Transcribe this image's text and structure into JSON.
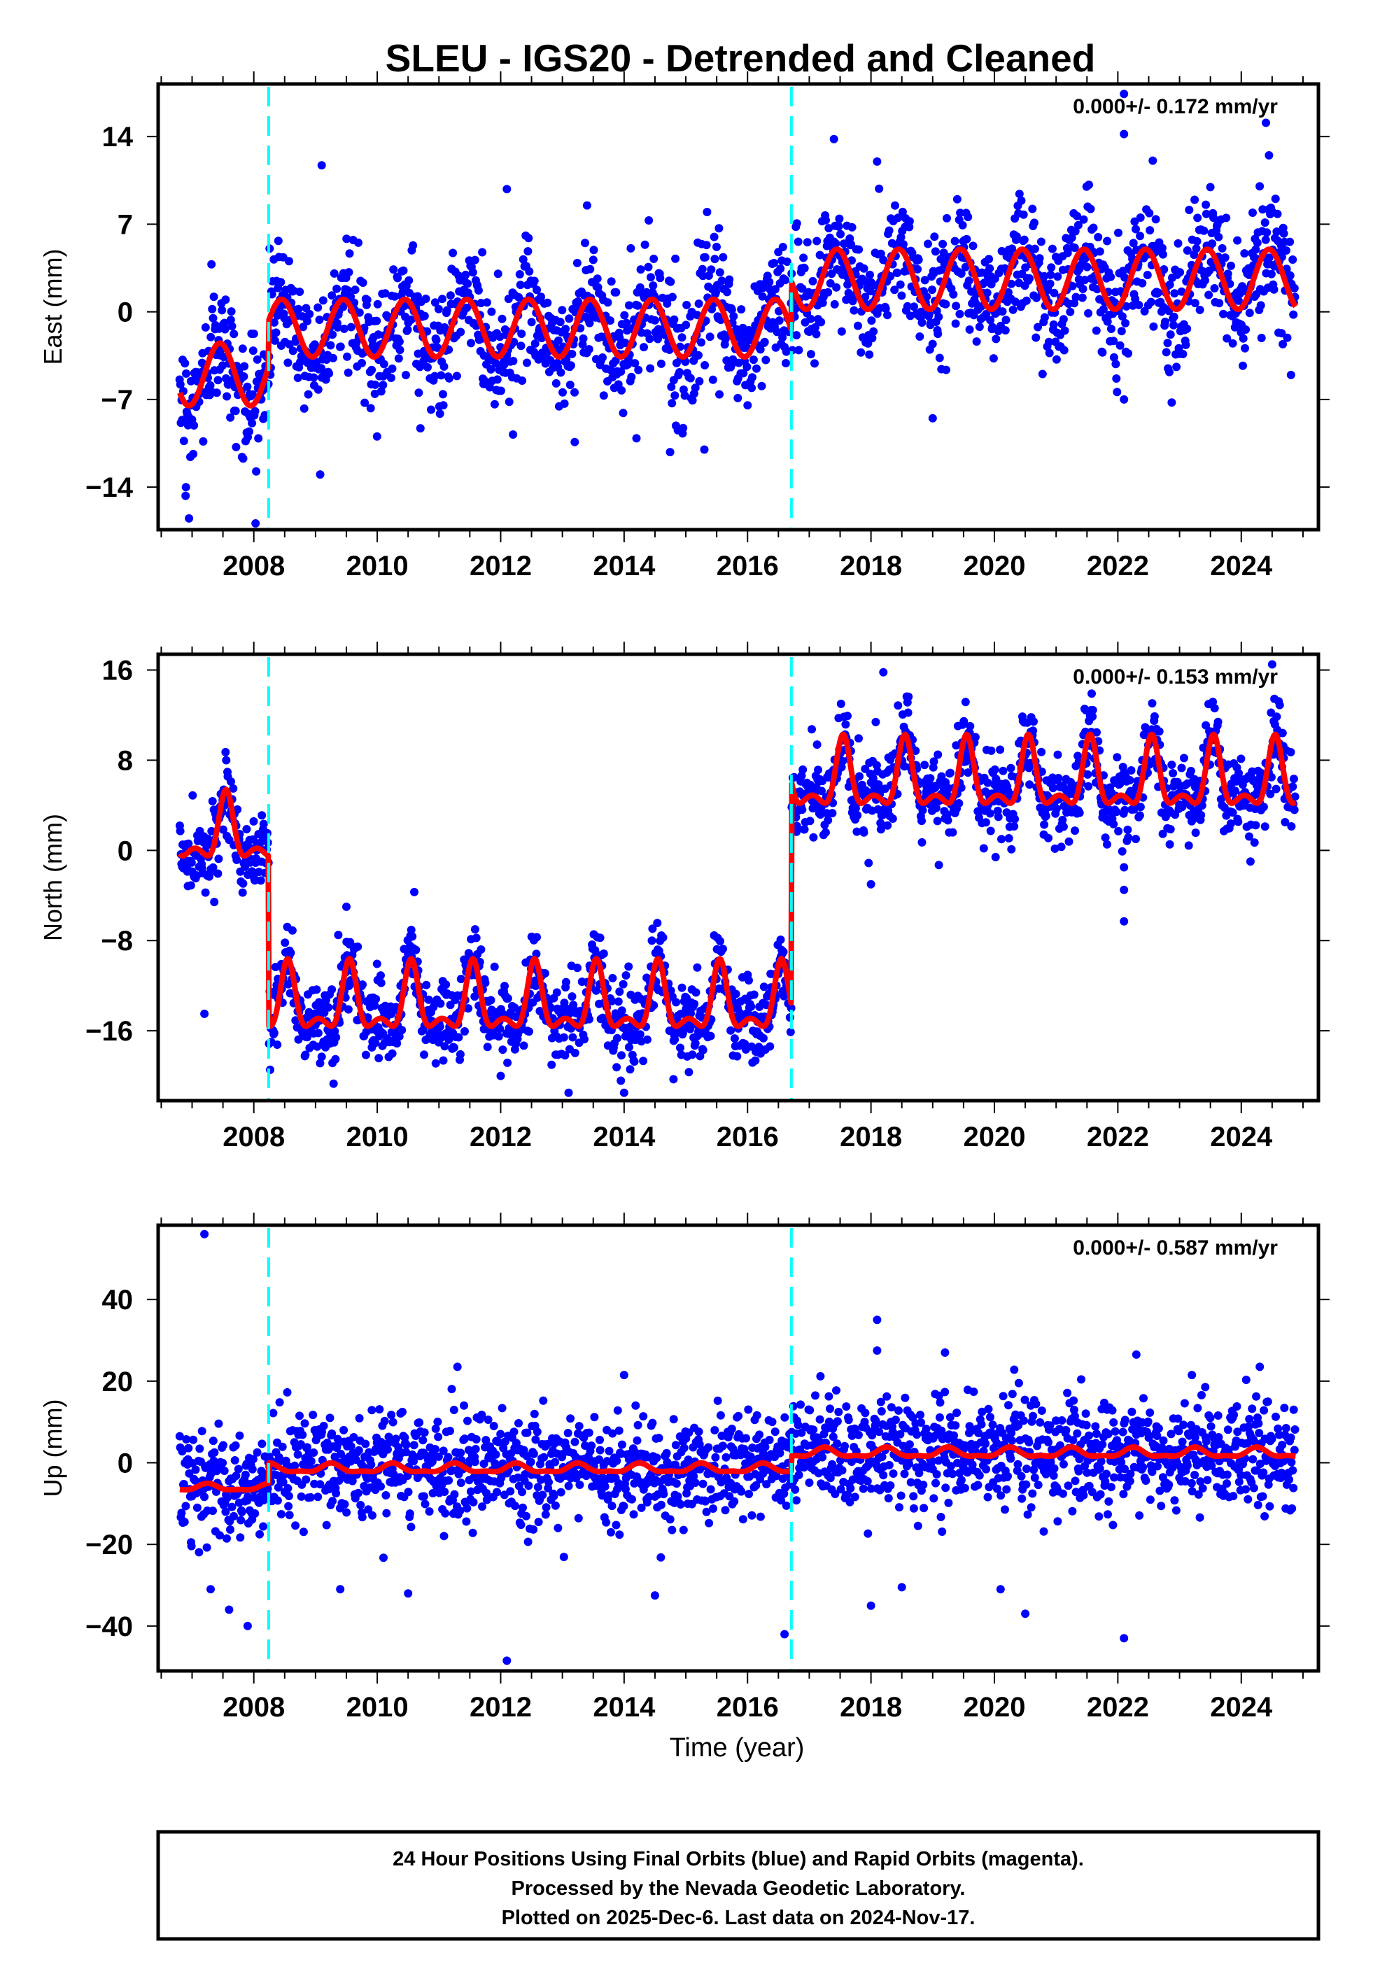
{
  "title": "SLEU - IGS20 - Detrended and Cleaned",
  "colors": {
    "final_orbits": "#0000ff",
    "fit": "#ff0000",
    "offset_line": "#00ffff",
    "frame": "#000000"
  },
  "footer": {
    "line1": "24 Hour Positions Using Final Orbits (blue) and Rapid Orbits (magenta).",
    "line2": "Processed by the Nevada Geodetic Laboratory.",
    "line3": "Plotted on 2025-Dec-6. Last data on 2024-Nov-17."
  },
  "chart_data": [
    {
      "type": "scatter",
      "name": "east",
      "ylabel": "East (mm)",
      "xlabel": "",
      "rate_annotation": "0.000+/- 0.172 mm/yr",
      "xlim": [
        2006.45,
        2025.25
      ],
      "ylim": [
        -17.4,
        18.2
      ],
      "x_ticks": [
        "2008",
        "2010",
        "2012",
        "2014",
        "2016",
        "2018",
        "2020",
        "2022",
        "2024"
      ],
      "y_ticks": [
        "14",
        "7",
        "0",
        "−7",
        "−14"
      ],
      "y_tick_values": [
        14,
        7,
        0,
        -7,
        -14
      ],
      "offset_epochs": [
        2008.24,
        2016.71
      ],
      "data_span": [
        2006.8,
        2024.88
      ],
      "noise_std": 2.4,
      "fit_segments": [
        {
          "start": 2006.8,
          "end": 2008.24,
          "mean": -5.0,
          "annual_amplitude": 2.5,
          "peak_phase": 0.45,
          "shape_power": 1
        },
        {
          "start": 2008.24,
          "end": 2016.71,
          "mean": -1.3,
          "annual_amplitude": 2.3,
          "peak_phase": 0.45,
          "shape_power": 1
        },
        {
          "start": 2016.71,
          "end": 2024.88,
          "mean": 2.6,
          "annual_amplitude": 2.4,
          "peak_phase": 0.45,
          "shape_power": 1
        }
      ],
      "outliers": [
        [
          2009.1,
          11.7
        ],
        [
          2012.1,
          9.8
        ],
        [
          2013.4,
          8.5
        ],
        [
          2014.4,
          7.3
        ],
        [
          2017.4,
          13.8
        ],
        [
          2018.1,
          12.0
        ],
        [
          2022.1,
          17.4
        ],
        [
          2022.1,
          14.2
        ],
        [
          2024.4,
          15.1
        ],
        [
          2024.45,
          12.5
        ],
        [
          2006.95,
          -16.5
        ],
        [
          2006.9,
          -14.0
        ],
        [
          2015.3,
          -11.0
        ],
        [
          2019.0,
          -8.5
        ],
        [
          2022.1,
          -7.0
        ],
        [
          2012.2,
          -9.8
        ],
        [
          2010.7,
          -9.3
        ],
        [
          2013.2,
          -10.4
        ],
        [
          2014.2,
          -10.1
        ]
      ]
    },
    {
      "type": "scatter",
      "name": "north",
      "ylabel": "North (mm)",
      "xlabel": "",
      "rate_annotation": "0.000+/- 0.153 mm/yr",
      "xlim": [
        2006.45,
        2025.25
      ],
      "ylim": [
        -22.2,
        17.4
      ],
      "x_ticks": [
        "2008",
        "2010",
        "2012",
        "2014",
        "2016",
        "2018",
        "2020",
        "2022",
        "2024"
      ],
      "y_ticks": [
        "16",
        "8",
        "0",
        "−8",
        "−16"
      ],
      "y_tick_values": [
        16,
        8,
        0,
        -8,
        -16
      ],
      "offset_epochs": [
        2008.24,
        2016.71
      ],
      "data_span": [
        2006.8,
        2024.88
      ],
      "noise_std": 1.8,
      "fit_segments": [
        {
          "start": 2006.8,
          "end": 2008.24,
          "mean": 0.3,
          "annual_amplitude": 5.2,
          "peak_phase": 0.55,
          "shape_power": 4
        },
        {
          "start": 2008.24,
          "end": 2016.71,
          "mean": -14.8,
          "annual_amplitude": 5.3,
          "peak_phase": 0.55,
          "shape_power": 4
        },
        {
          "start": 2016.71,
          "end": 2024.88,
          "mean": 5.0,
          "annual_amplitude": 5.4,
          "peak_phase": 0.55,
          "shape_power": 4
        }
      ],
      "outliers": [
        [
          2007.2,
          -14.5
        ],
        [
          2018.2,
          15.8
        ],
        [
          2024.5,
          16.5
        ],
        [
          2022.1,
          -6.3
        ],
        [
          2022.1,
          -3.5
        ],
        [
          2022.1,
          -1.5
        ],
        [
          2013.1,
          -21.5
        ],
        [
          2014.0,
          -21.5
        ],
        [
          2019.1,
          -1.3
        ],
        [
          2018.0,
          -3.0
        ],
        [
          2009.1,
          -18.3
        ],
        [
          2012.0,
          -20.0
        ],
        [
          2014.8,
          -20.3
        ],
        [
          2010.2,
          -17.0
        ],
        [
          2009.5,
          -5.0
        ],
        [
          2010.6,
          -3.7
        ]
      ]
    },
    {
      "type": "scatter",
      "name": "up",
      "ylabel": "Up (mm)",
      "xlabel": "Time (year)",
      "rate_annotation": "0.000+/- 0.587 mm/yr",
      "xlim": [
        2006.45,
        2025.25
      ],
      "ylim": [
        -51,
        58.2
      ],
      "x_ticks": [
        "2008",
        "2010",
        "2012",
        "2014",
        "2016",
        "2018",
        "2020",
        "2022",
        "2024"
      ],
      "y_ticks": [
        "40",
        "20",
        "0",
        "−20",
        "−40"
      ],
      "y_tick_values": [
        40,
        20,
        0,
        -20,
        -40
      ],
      "offset_epochs": [
        2008.24,
        2016.71
      ],
      "data_span": [
        2006.8,
        2024.88
      ],
      "noise_std": 6.5,
      "fit_segments": [
        {
          "start": 2006.8,
          "end": 2008.24,
          "mean": -6.5,
          "annual_amplitude": 1.5,
          "peak_phase": 0.25,
          "shape_power": 2
        },
        {
          "start": 2008.24,
          "end": 2016.71,
          "mean": -2.0,
          "annual_amplitude": 2.0,
          "peak_phase": 0.25,
          "shape_power": 2
        },
        {
          "start": 2016.71,
          "end": 2024.88,
          "mean": 1.8,
          "annual_amplitude": 2.1,
          "peak_phase": 0.25,
          "shape_power": 2
        }
      ],
      "outliers": [
        [
          2007.2,
          56.0
        ],
        [
          2012.1,
          -48.5
        ],
        [
          2022.1,
          -43.0
        ],
        [
          2016.6,
          -42.0
        ],
        [
          2018.1,
          35.0
        ],
        [
          2007.9,
          -40.0
        ],
        [
          2007.6,
          -36.0
        ],
        [
          2007.3,
          -31.0
        ],
        [
          2018.1,
          27.5
        ],
        [
          2019.2,
          27.0
        ],
        [
          2022.3,
          26.5
        ],
        [
          2011.3,
          23.5
        ],
        [
          2014.0,
          21.5
        ],
        [
          2024.3,
          23.5
        ],
        [
          2020.5,
          -37.0
        ],
        [
          2018.0,
          -35.0
        ],
        [
          2014.5,
          -32.5
        ],
        [
          2009.4,
          -31.0
        ],
        [
          2010.5,
          -32.0
        ],
        [
          2020.1,
          -31.0
        ],
        [
          2018.5,
          -30.5
        ],
        [
          2023.2,
          21.5
        ]
      ]
    }
  ]
}
